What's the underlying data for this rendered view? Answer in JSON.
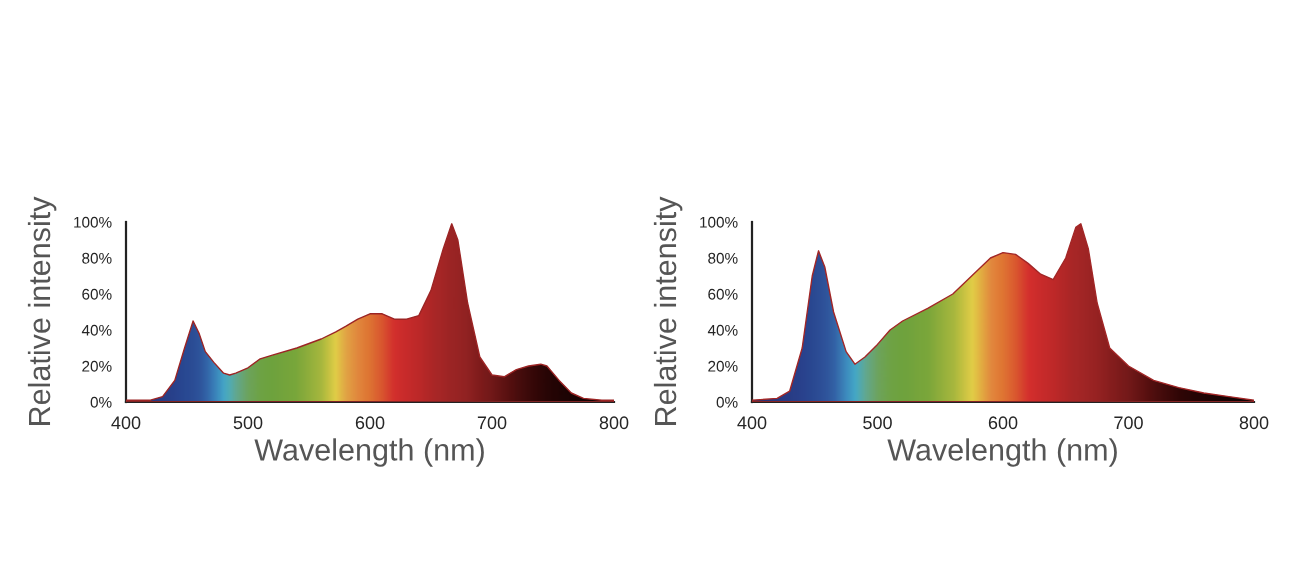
{
  "chart_data": [
    {
      "type": "area",
      "xlabel": "Wavelength (nm)",
      "ylabel": "Relative intensity",
      "xlim": [
        400,
        800
      ],
      "xticks": [
        400,
        500,
        600,
        700,
        800
      ],
      "ylim": [
        0,
        100
      ],
      "yticks": [
        {
          "value": 0,
          "label": "0%"
        },
        {
          "value": 20,
          "label": "20%"
        },
        {
          "value": 40,
          "label": "40%"
        },
        {
          "value": 60,
          "label": "60%"
        },
        {
          "value": 80,
          "label": "80%"
        },
        {
          "value": 100,
          "label": "100%"
        }
      ],
      "grid": false,
      "legend": false,
      "series": [
        {
          "x": [
            400,
            420,
            430,
            440,
            448,
            455,
            460,
            465,
            472,
            480,
            485,
            490,
            500,
            510,
            520,
            540,
            560,
            572,
            580,
            590,
            600,
            610,
            620,
            630,
            640,
            650,
            660,
            667,
            672,
            680,
            690,
            700,
            710,
            720,
            730,
            740,
            745,
            755,
            765,
            775,
            790,
            800
          ],
          "values": [
            1,
            1,
            3,
            12,
            30,
            45,
            38,
            28,
            22,
            16,
            15,
            16,
            19,
            24,
            26,
            30,
            35,
            39,
            42,
            46,
            49,
            49,
            46,
            46,
            48,
            62,
            85,
            99,
            90,
            55,
            25,
            15,
            14,
            18,
            20,
            21,
            20,
            12,
            5,
            2,
            1,
            1
          ],
          "colors": [
            "#1a2f7a",
            "#1f3a88",
            "#1f3f8f",
            "#1f4596",
            "#204c9c",
            "#2352a0",
            "#2558a5",
            "#2a66b0",
            "#3185c5",
            "#3db0d5",
            "#4cb8c0",
            "#5db39a",
            "#6aae62",
            "#6aae48",
            "#6bad40",
            "#78b23c",
            "#a8c440",
            "#e8dc4a",
            "#e8b048",
            "#e89040",
            "#e47a34",
            "#df5a30",
            "#d8302e",
            "#cc2c2c",
            "#c02a2a",
            "#b02828",
            "#a42626",
            "#9c2424",
            "#982424",
            "#902222",
            "#7e1c1c",
            "#6e1818",
            "#5a1212",
            "#460c0c",
            "#340808",
            "#260404",
            "#200404",
            "#180202",
            "#120202",
            "#0c0101",
            "#060000",
            "#000000"
          ]
        }
      ]
    },
    {
      "type": "area",
      "xlabel": "Wavelength (nm)",
      "ylabel": "Relative intensity",
      "xlim": [
        400,
        800
      ],
      "xticks": [
        400,
        500,
        600,
        700,
        800
      ],
      "ylim": [
        0,
        100
      ],
      "yticks": [
        {
          "value": 0,
          "label": "0%"
        },
        {
          "value": 20,
          "label": "20%"
        },
        {
          "value": 40,
          "label": "40%"
        },
        {
          "value": 60,
          "label": "60%"
        },
        {
          "value": 80,
          "label": "80%"
        },
        {
          "value": 100,
          "label": "100%"
        }
      ],
      "grid": false,
      "legend": false,
      "series": [
        {
          "x": [
            400,
            420,
            430,
            440,
            448,
            453,
            458,
            465,
            475,
            482,
            490,
            500,
            510,
            520,
            540,
            560,
            575,
            590,
            600,
            610,
            620,
            630,
            640,
            650,
            658,
            662,
            668,
            675,
            685,
            700,
            720,
            740,
            760,
            780,
            800
          ],
          "values": [
            1,
            2,
            6,
            30,
            70,
            84,
            75,
            50,
            28,
            21,
            25,
            32,
            40,
            45,
            52,
            60,
            70,
            80,
            83,
            82,
            77,
            71,
            68,
            80,
            97,
            99,
            85,
            55,
            30,
            20,
            12,
            8,
            5,
            3,
            1
          ],
          "colors": [
            "#1a2f7a",
            "#1f3a88",
            "#1f3f8f",
            "#1f4596",
            "#204c9c",
            "#2352a0",
            "#2558a5",
            "#2a66b0",
            "#3595cc",
            "#3db4d5",
            "#5db39a",
            "#6aae62",
            "#6aae48",
            "#6bad40",
            "#78b23c",
            "#a8c440",
            "#e8dc4a",
            "#e89040",
            "#e47a34",
            "#df5a30",
            "#d8302e",
            "#cc2c2c",
            "#c02a2a",
            "#b02828",
            "#a62626",
            "#a22626",
            "#9c2424",
            "#942222",
            "#841e1e",
            "#6e1818",
            "#460c0c",
            "#260404",
            "#160202",
            "#0a0101",
            "#000000"
          ]
        }
      ]
    }
  ]
}
